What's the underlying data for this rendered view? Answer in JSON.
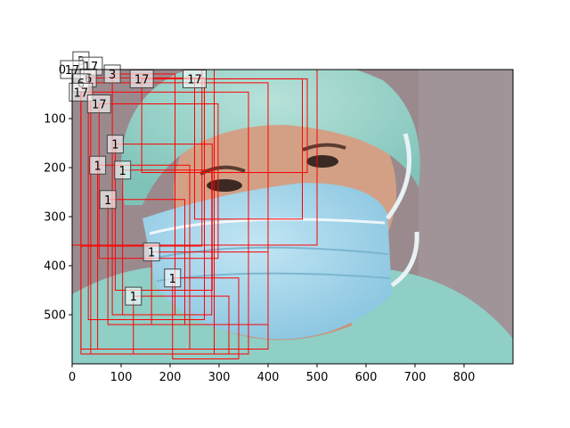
{
  "axes": {
    "x_range": [
      0,
      900
    ],
    "y_range": [
      600,
      0
    ],
    "x_ticks": [
      0,
      100,
      200,
      300,
      400,
      500,
      600,
      700,
      800
    ],
    "y_ticks": [
      0,
      100,
      200,
      300,
      400,
      500
    ],
    "x_tick_labels": [
      "0",
      "100",
      "200",
      "300",
      "400",
      "500",
      "600",
      "700",
      "800"
    ],
    "y_tick_labels": [
      "0",
      "100",
      "200",
      "300",
      "400",
      "500"
    ]
  },
  "image": {
    "subject": "medical worker wearing surgical cap and face mask",
    "colors": {
      "background": "#9a8a8e",
      "cap": "#9fd4cc",
      "mask": "#a9d6ea",
      "skin": "#d3a086",
      "gown": "#8fcfc6"
    }
  },
  "annotation_color": "#ff0000",
  "boxes": [
    {
      "label": "3",
      "x0": 18,
      "y0": -18,
      "x1": 265,
      "y1": 360
    },
    {
      "label": "17",
      "x0": 38,
      "y0": -7,
      "x1": 290,
      "y1": 580
    },
    {
      "label": "17",
      "x0": 0,
      "y0": 0,
      "x1": 500,
      "y1": 358
    },
    {
      "label": "6",
      "x0": 33,
      "y0": 17,
      "x1": 270,
      "y1": 510
    },
    {
      "label": "3",
      "x0": 82,
      "y0": 9,
      "x1": 210,
      "y1": 500
    },
    {
      "label": "17",
      "x0": 142,
      "y0": 19,
      "x1": 480,
      "y1": 210
    },
    {
      "label": "17",
      "x0": 250,
      "y0": 19,
      "x1": 470,
      "y1": 305
    },
    {
      "label": "6",
      "x0": 18,
      "y0": 27,
      "x1": 400,
      "y1": 570
    },
    {
      "label": "17",
      "x0": 18,
      "y0": 46,
      "x1": 360,
      "y1": 580
    },
    {
      "label": "17",
      "x0": 55,
      "y0": 70,
      "x1": 298,
      "y1": 385
    },
    {
      "label": "1",
      "x0": 88,
      "y0": 152,
      "x1": 286,
      "y1": 450
    },
    {
      "label": "1",
      "x0": 52,
      "y0": 195,
      "x1": 240,
      "y1": 570
    },
    {
      "label": "1",
      "x0": 103,
      "y0": 205,
      "x1": 285,
      "y1": 500
    },
    {
      "label": "1",
      "x0": 73,
      "y0": 265,
      "x1": 230,
      "y1": 520
    },
    {
      "label": "1",
      "x0": 162,
      "y0": 372,
      "x1": 400,
      "y1": 520
    },
    {
      "label": "1",
      "x0": 205,
      "y0": 425,
      "x1": 340,
      "y1": 590
    },
    {
      "label": "1",
      "x0": 125,
      "y0": 462,
      "x1": 320,
      "y1": 580
    }
  ]
}
